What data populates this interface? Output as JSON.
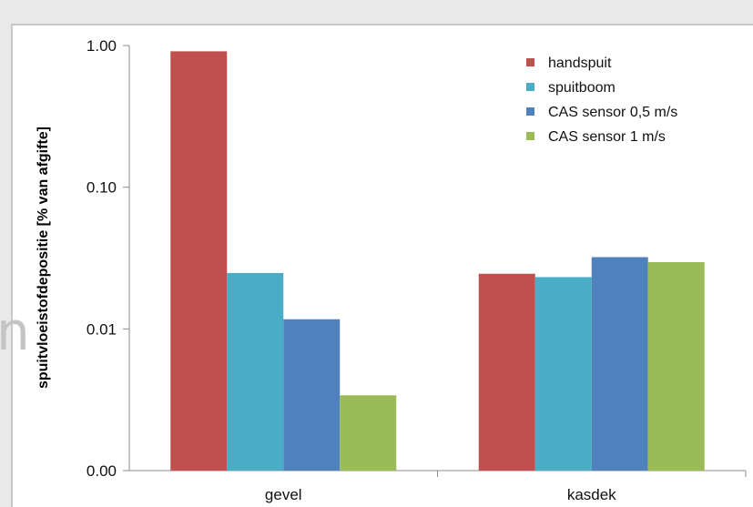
{
  "chart_data": {
    "type": "bar",
    "ylabel": "spuitvloeistofdepositie [% van afgifte]",
    "yscale": "log",
    "ylim": [
      0.001,
      1.0
    ],
    "yticks": [
      {
        "value": 1.0,
        "label": "1.00"
      },
      {
        "value": 0.1,
        "label": "0.10"
      },
      {
        "value": 0.01,
        "label": "0.01"
      },
      {
        "value": 0.001,
        "label": "0.00"
      }
    ],
    "categories": [
      "gevel",
      "kasdek"
    ],
    "series": [
      {
        "name": "handspuit",
        "color": "#c0504d",
        "values": [
          0.91,
          0.0245
        ]
      },
      {
        "name": "spuitboom",
        "color": "#4bacc6",
        "values": [
          0.0248,
          0.0232
        ]
      },
      {
        "name": "CAS sensor 0,5 m/s",
        "color": "#4f81bd",
        "values": [
          0.0117,
          0.0321
        ]
      },
      {
        "name": "CAS sensor 1 m/s",
        "color": "#9bbb59",
        "values": [
          0.0034,
          0.0296
        ]
      }
    ],
    "legend_position": "top-right",
    "grid": false
  },
  "decor": {
    "partial_letter": "n"
  }
}
